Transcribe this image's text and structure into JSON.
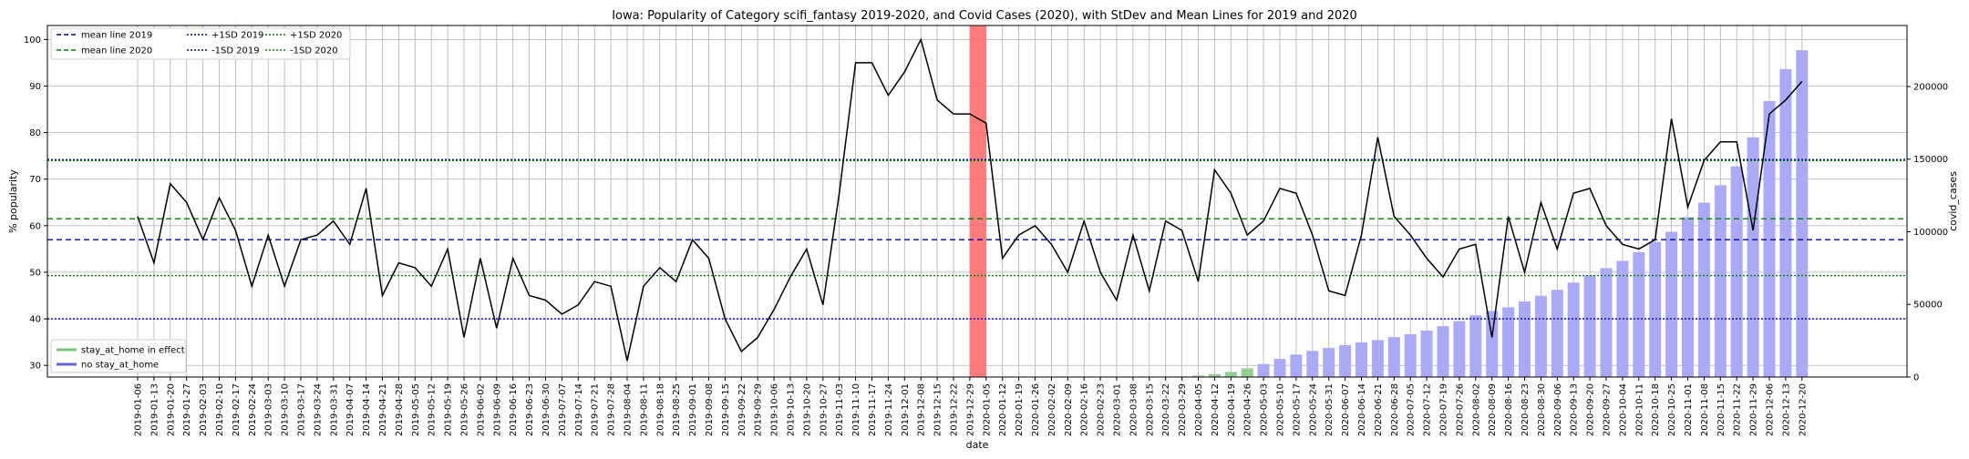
{
  "chart_data": {
    "type": "line",
    "title": "Iowa: Popularity of Category scifi_fantasy 2019-2020, and Covid Cases (2020), with StDev and Mean Lines for 2019 and 2020",
    "xlabel": "date",
    "ylabel_left": "% popularity",
    "ylabel_right": "covid_cases",
    "ylim_left": [
      27.5,
      103
    ],
    "ylim_right": [
      0,
      242000
    ],
    "yticks_left": [
      30,
      40,
      50,
      60,
      70,
      80,
      90,
      100
    ],
    "yticks_right": [
      0,
      50000,
      100000,
      150000,
      200000
    ],
    "grid": true,
    "legend_top": {
      "placement": "top-left",
      "entries": [
        {
          "label": "mean line 2019",
          "color": "#0000aa",
          "style": "dashed"
        },
        {
          "label": "mean line 2020",
          "color": "#008000",
          "style": "dashed"
        },
        {
          "label": "+1SD 2019",
          "color": "#0000aa",
          "style": "dotted"
        },
        {
          "label": "-1SD 2019",
          "color": "#0000aa",
          "style": "dotted"
        },
        {
          "label": "+1SD 2020",
          "color": "#008000",
          "style": "dotted"
        },
        {
          "label": "-1SD 2020",
          "color": "#008000",
          "style": "dotted"
        }
      ]
    },
    "legend_bottom": {
      "placement": "bottom-left",
      "entries": [
        {
          "label": "stay_at_home in effect",
          "color": "#7cc47c"
        },
        {
          "label": "no stay_at_home",
          "color": "#6666dd"
        }
      ]
    },
    "reference_lines": {
      "mean_2019": 57,
      "mean_2020": 61.5,
      "plus1sd_2019": 74.2,
      "minus1sd_2019": 40,
      "plus1sd_2020": 74,
      "minus1sd_2020": 49.3
    },
    "highlight_band": {
      "from": "2019-12-29",
      "to": "2020-01-05",
      "color": "#ff6666"
    },
    "x": [
      "2019-01-06",
      "2019-01-13",
      "2019-01-20",
      "2019-01-27",
      "2019-02-03",
      "2019-02-10",
      "2019-02-17",
      "2019-02-24",
      "2019-03-03",
      "2019-03-10",
      "2019-03-17",
      "2019-03-24",
      "2019-03-31",
      "2019-04-07",
      "2019-04-14",
      "2019-04-21",
      "2019-04-28",
      "2019-05-05",
      "2019-05-12",
      "2019-05-19",
      "2019-05-26",
      "2019-06-02",
      "2019-06-09",
      "2019-06-16",
      "2019-06-23",
      "2019-06-30",
      "2019-07-07",
      "2019-07-14",
      "2019-07-21",
      "2019-07-28",
      "2019-08-04",
      "2019-08-11",
      "2019-08-18",
      "2019-08-25",
      "2019-09-01",
      "2019-09-08",
      "2019-09-15",
      "2019-09-22",
      "2019-09-29",
      "2019-10-06",
      "2019-10-13",
      "2019-10-20",
      "2019-10-27",
      "2019-11-03",
      "2019-11-10",
      "2019-11-17",
      "2019-11-24",
      "2019-12-01",
      "2019-12-08",
      "2019-12-15",
      "2019-12-22",
      "2019-12-29",
      "2020-01-05",
      "2020-01-12",
      "2020-01-19",
      "2020-01-26",
      "2020-02-02",
      "2020-02-09",
      "2020-02-16",
      "2020-02-23",
      "2020-03-01",
      "2020-03-08",
      "2020-03-15",
      "2020-03-22",
      "2020-03-29",
      "2020-04-05",
      "2020-04-12",
      "2020-04-19",
      "2020-04-26",
      "2020-05-03",
      "2020-05-10",
      "2020-05-17",
      "2020-05-24",
      "2020-05-31",
      "2020-06-07",
      "2020-06-14",
      "2020-06-21",
      "2020-06-28",
      "2020-07-05",
      "2020-07-12",
      "2020-07-19",
      "2020-07-26",
      "2020-08-02",
      "2020-08-09",
      "2020-08-16",
      "2020-08-23",
      "2020-08-30",
      "2020-09-06",
      "2020-09-13",
      "2020-09-20",
      "2020-09-27",
      "2020-10-04",
      "2020-10-11",
      "2020-10-18",
      "2020-10-25",
      "2020-11-01",
      "2020-11-08",
      "2020-11-15",
      "2020-11-22",
      "2020-11-29",
      "2020-12-06",
      "2020-12-13",
      "2020-12-20"
    ],
    "series": [
      {
        "name": "popularity",
        "axis": "left",
        "color": "#000000",
        "values": [
          62,
          52,
          69,
          65,
          57,
          66,
          59,
          47,
          58,
          47,
          57,
          58,
          61,
          56,
          68,
          45,
          52,
          51,
          47,
          55,
          36,
          53,
          38,
          53,
          45,
          44,
          41,
          43,
          48,
          47,
          31,
          47,
          51,
          48,
          57,
          53,
          40,
          33,
          36,
          42,
          49,
          55,
          43,
          67,
          95,
          95,
          88,
          93,
          100,
          87,
          84,
          84,
          82,
          53,
          58,
          60,
          56,
          50,
          61,
          50,
          44,
          58,
          46,
          61,
          59,
          48,
          72,
          67,
          58,
          61,
          68,
          67,
          58,
          46,
          45,
          58,
          79,
          62,
          58,
          53,
          49,
          55,
          56,
          36,
          62,
          50,
          65,
          55,
          67,
          68,
          60,
          56,
          55,
          57,
          83,
          64,
          74,
          78,
          78,
          59,
          84,
          87,
          91
        ]
      },
      {
        "name": "covid_cases",
        "axis": "right",
        "type": "bar",
        "values": [
          0,
          0,
          0,
          0,
          0,
          0,
          0,
          0,
          0,
          0,
          0,
          0,
          0,
          0,
          0,
          0,
          0,
          0,
          0,
          0,
          0,
          0,
          0,
          0,
          0,
          0,
          0,
          0,
          0,
          0,
          0,
          0,
          0,
          0,
          0,
          0,
          0,
          0,
          0,
          0,
          0,
          0,
          0,
          0,
          0,
          0,
          0,
          0,
          0,
          0,
          0,
          0,
          0,
          0,
          0,
          0,
          0,
          0,
          0,
          0,
          0,
          0,
          0,
          0,
          400,
          1000,
          2000,
          3500,
          6000,
          9000,
          12500,
          15500,
          18000,
          20000,
          22000,
          23800,
          25500,
          27500,
          29500,
          32000,
          35000,
          38500,
          42500,
          45500,
          48000,
          52000,
          56000,
          60000,
          65000,
          70000,
          75000,
          80000,
          86000,
          93000,
          100000,
          110000,
          120000,
          132000,
          145000,
          165000,
          190000,
          212000,
          225000
        ]
      }
    ],
    "bar_colors": {
      "stay_at_home": "#8fcf8f",
      "no_stay_at_home": "#aaaaf8"
    },
    "stay_at_home_range": [
      "2020-04-05",
      "2020-04-26"
    ]
  }
}
